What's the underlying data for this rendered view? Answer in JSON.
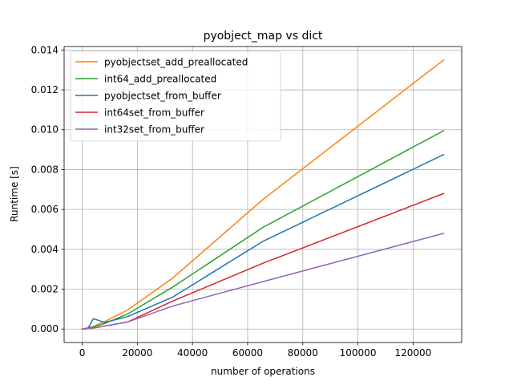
{
  "chart_data": {
    "type": "line",
    "title": "pyobject_map vs dict",
    "xlabel": "number of operations",
    "ylabel": "Runtime [s]",
    "xlim": [
      -6553.6,
      137625.6
    ],
    "ylim": [
      -0.000675,
      0.014175
    ],
    "xticks": [
      0,
      20000,
      40000,
      60000,
      80000,
      100000,
      120000
    ],
    "xtick_labels": [
      "0",
      "20000",
      "40000",
      "60000",
      "80000",
      "100000",
      "120000"
    ],
    "yticks": [
      0.0,
      0.002,
      0.004,
      0.006,
      0.008,
      0.01,
      0.012,
      0.014
    ],
    "ytick_labels": [
      "0.000",
      "0.002",
      "0.004",
      "0.006",
      "0.008",
      "0.010",
      "0.012",
      "0.014"
    ],
    "grid": true,
    "legend_position": "top-left",
    "series": [
      {
        "name": "pyobjectset_add_preallocated",
        "color": "#ff7f0e",
        "x": [
          0,
          2048,
          4096,
          8192,
          16384,
          32768,
          65536,
          131072
        ],
        "y": [
          0.0,
          6e-05,
          0.00013,
          0.00038,
          0.00095,
          0.00255,
          0.0065,
          0.0135
        ]
      },
      {
        "name": "int64_add_preallocated",
        "color": "#2ca02c",
        "x": [
          0,
          2048,
          4096,
          8192,
          16384,
          32768,
          65536,
          131072
        ],
        "y": [
          0.0,
          4e-05,
          0.0001,
          0.00028,
          0.00075,
          0.0021,
          0.0051,
          0.00995
        ]
      },
      {
        "name": "pyobjectset_from_buffer",
        "color": "#1f77b4",
        "x": [
          0,
          2048,
          4096,
          8192,
          16384,
          32768,
          65536,
          131072
        ],
        "y": [
          0.0,
          3e-05,
          0.00052,
          0.00033,
          0.00062,
          0.0016,
          0.0044,
          0.00875
        ]
      },
      {
        "name": "int64set_from_buffer",
        "color": "#d62728",
        "x": [
          0,
          2048,
          4096,
          8192,
          16384,
          32768,
          65536,
          131072
        ],
        "y": [
          0.0,
          2e-05,
          5e-05,
          0.00015,
          0.00035,
          0.0014,
          0.0033,
          0.0068
        ]
      },
      {
        "name": "int32set_from_buffer",
        "color": "#9467bd",
        "x": [
          0,
          2048,
          4096,
          8192,
          16384,
          32768,
          65536,
          131072
        ],
        "y": [
          0.0,
          2e-05,
          5e-05,
          0.00015,
          0.00035,
          0.00115,
          0.00238,
          0.0048
        ]
      }
    ]
  }
}
